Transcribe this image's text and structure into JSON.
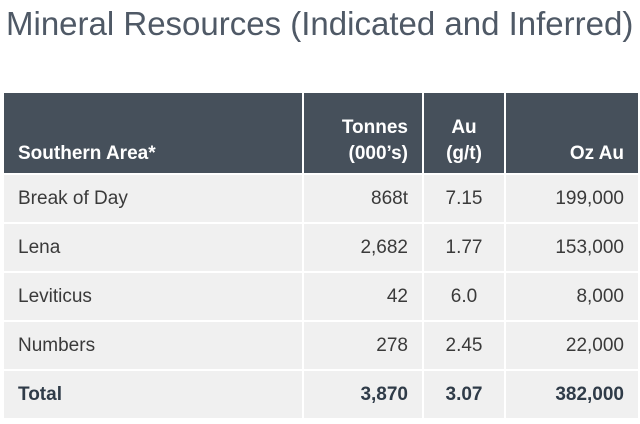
{
  "title": "Mineral Resources (Indicated and Inferred)",
  "table": {
    "headers": {
      "area": "Southern Area*",
      "tonnes_line1": "Tonnes",
      "tonnes_line2": "(000’s)",
      "au_line1": "Au",
      "au_line2": "(g/t)",
      "oz": "Oz Au"
    },
    "rows": [
      {
        "name": "Break of Day",
        "tonnes": "868t",
        "au": "7.15",
        "oz": "199,000"
      },
      {
        "name": "Lena",
        "tonnes": "2,682",
        "au": "1.77",
        "oz": "153,000"
      },
      {
        "name": "Leviticus",
        "tonnes": "42",
        "au": "6.0",
        "oz": "8,000"
      },
      {
        "name": "Numbers",
        "tonnes": "278",
        "au": "2.45",
        "oz": "22,000"
      }
    ],
    "total": {
      "name": "Total",
      "tonnes": "3,870",
      "au": "3.07",
      "oz": "382,000"
    }
  },
  "colors": {
    "header_bg": "#46505b",
    "row_bg": "#f0f0f0",
    "title_text": "#4f5966"
  }
}
